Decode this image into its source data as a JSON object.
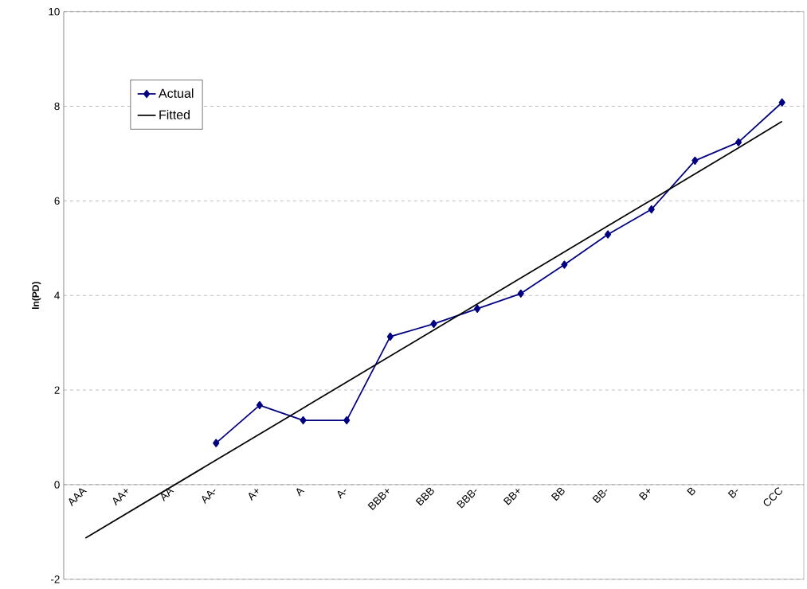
{
  "chart_data": {
    "type": "line",
    "ylabel": "ln(PD)",
    "categories": [
      "AAA",
      "AA+",
      "AA",
      "AA-",
      "A+",
      "A",
      "A-",
      "BBB+",
      "BBB",
      "BBB-",
      "BB+",
      "BB",
      "BB-",
      "B+",
      "B",
      "B-",
      "CCC"
    ],
    "series": [
      {
        "name": "Actual",
        "color": "#000080",
        "marker": "diamond",
        "values": [
          null,
          null,
          null,
          0.88,
          1.68,
          1.36,
          1.36,
          3.13,
          3.4,
          3.72,
          4.04,
          4.65,
          5.29,
          5.82,
          6.85,
          7.24,
          8.08
        ]
      },
      {
        "name": "Fitted",
        "color": "#000000",
        "marker": "none",
        "values": [
          -1.13,
          -0.58,
          -0.03,
          0.52,
          1.07,
          1.62,
          2.17,
          2.72,
          3.27,
          3.82,
          4.37,
          4.92,
          5.47,
          6.02,
          6.57,
          7.12,
          7.68
        ]
      }
    ],
    "ylim": [
      -2,
      10
    ],
    "yticks": [
      -2,
      0,
      2,
      4,
      6,
      8,
      10
    ],
    "grid": "y",
    "legend": "top left",
    "line_style": "solid"
  }
}
